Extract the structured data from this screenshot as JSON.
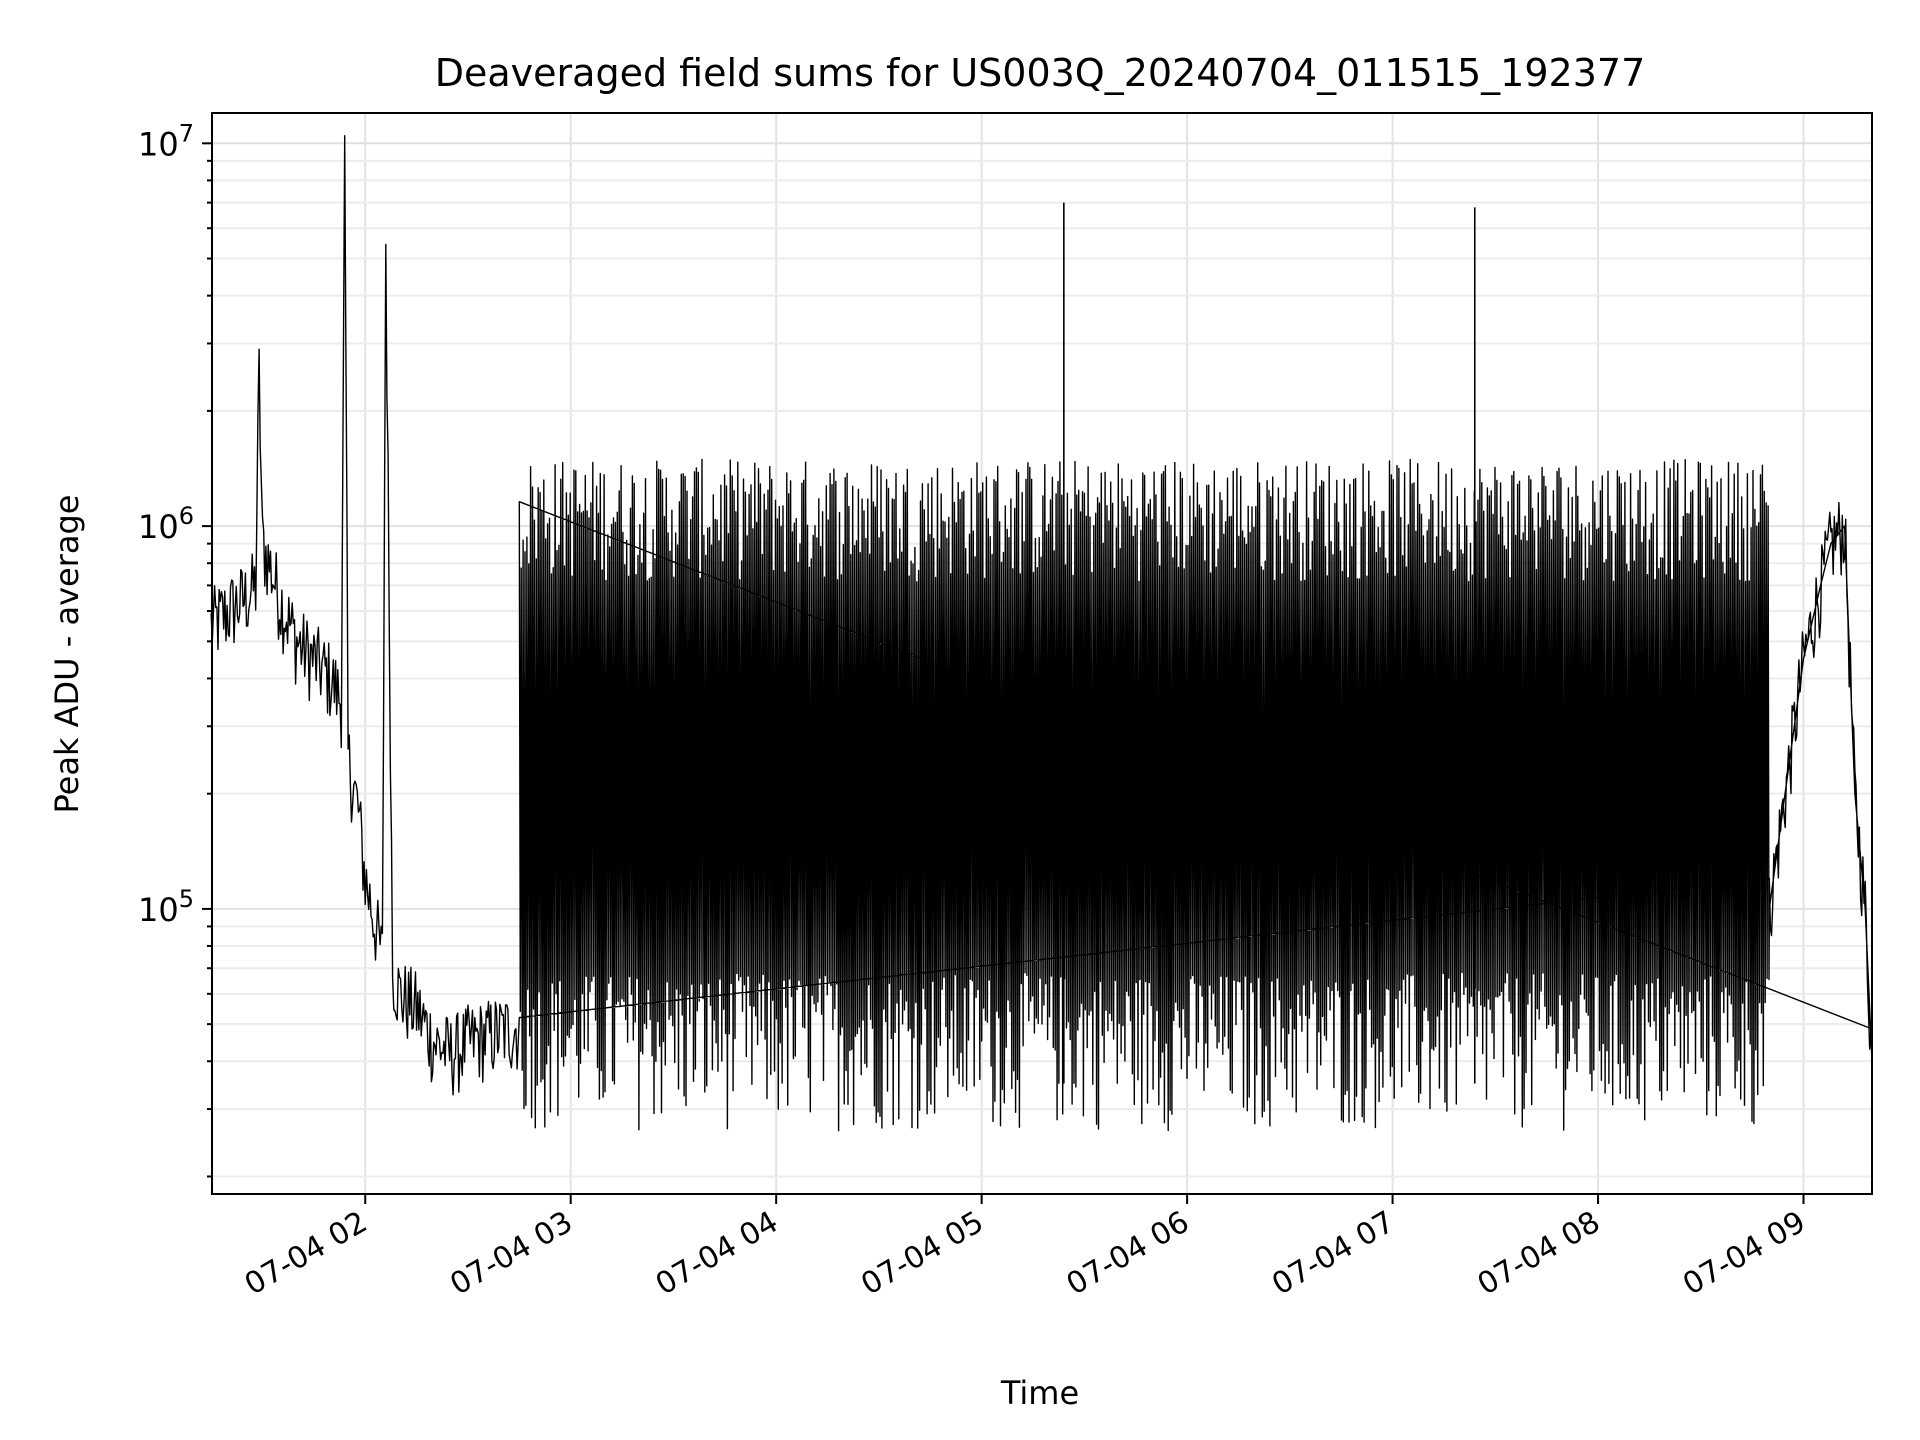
{
  "chart_data": {
    "type": "line",
    "title": "Deaveraged field sums for US003Q_20240704_011515_192377",
    "xlabel": "Time",
    "ylabel": "Peak ADU - average",
    "yscale": "log",
    "ylim": [
      18000,
      12000000
    ],
    "xlim": [
      "2024-07-04 01:15:15",
      "2024-07-04 09:20:00"
    ],
    "grid": true,
    "x_ticks": [
      "07-04 02",
      "07-04 03",
      "07-04 04",
      "07-04 05",
      "07-04 06",
      "07-04 07",
      "07-04 08",
      "07-04 09"
    ],
    "y_ticks": [
      {
        "base": "10",
        "exp": "5"
      },
      {
        "base": "10",
        "exp": "6"
      },
      {
        "base": "10",
        "exp": "7"
      }
    ],
    "series": [
      {
        "color": "#000000",
        "x": [
          "01:15",
          "01:20",
          "01:25",
          "01:28",
          "01:29",
          "01:30",
          "01:32",
          "01:35",
          "01:40",
          "01:45",
          "01:50",
          "01:53",
          "01:54",
          "01:55",
          "01:58",
          "02:00",
          "02:02",
          "02:05",
          "02:06",
          "02:08",
          "02:10",
          "02:15",
          "02:20",
          "02:25",
          "02:30",
          "02:40",
          "02:50",
          "03:00",
          "08:00",
          "08:30",
          "08:50",
          "09:00",
          "09:05",
          "09:08",
          "09:12",
          "09:15",
          "09:18",
          "09:20"
        ],
        "y": [
          550000,
          600000,
          650000,
          700000,
          2500000,
          900000,
          800000,
          650000,
          500000,
          450000,
          400000,
          350000,
          9000000,
          250000,
          180000,
          120000,
          100000,
          75000,
          5500000,
          70000,
          60000,
          55000,
          45000,
          42000,
          45000,
          48000,
          50000,
          55000,
          50000,
          45000,
          100000,
          450000,
          700000,
          900000,
          1000000,
          200000,
          100000,
          40000
        ],
        "envelope": {
          "x_range": [
            "02:45",
            "08:50"
          ],
          "upper_approx": 1300000,
          "lower_approx": 35000,
          "note_peaks": [
            {
              "x": "05:24",
              "y": 7000000
            },
            {
              "x": "07:24",
              "y": 6800000
            }
          ]
        }
      }
    ]
  }
}
